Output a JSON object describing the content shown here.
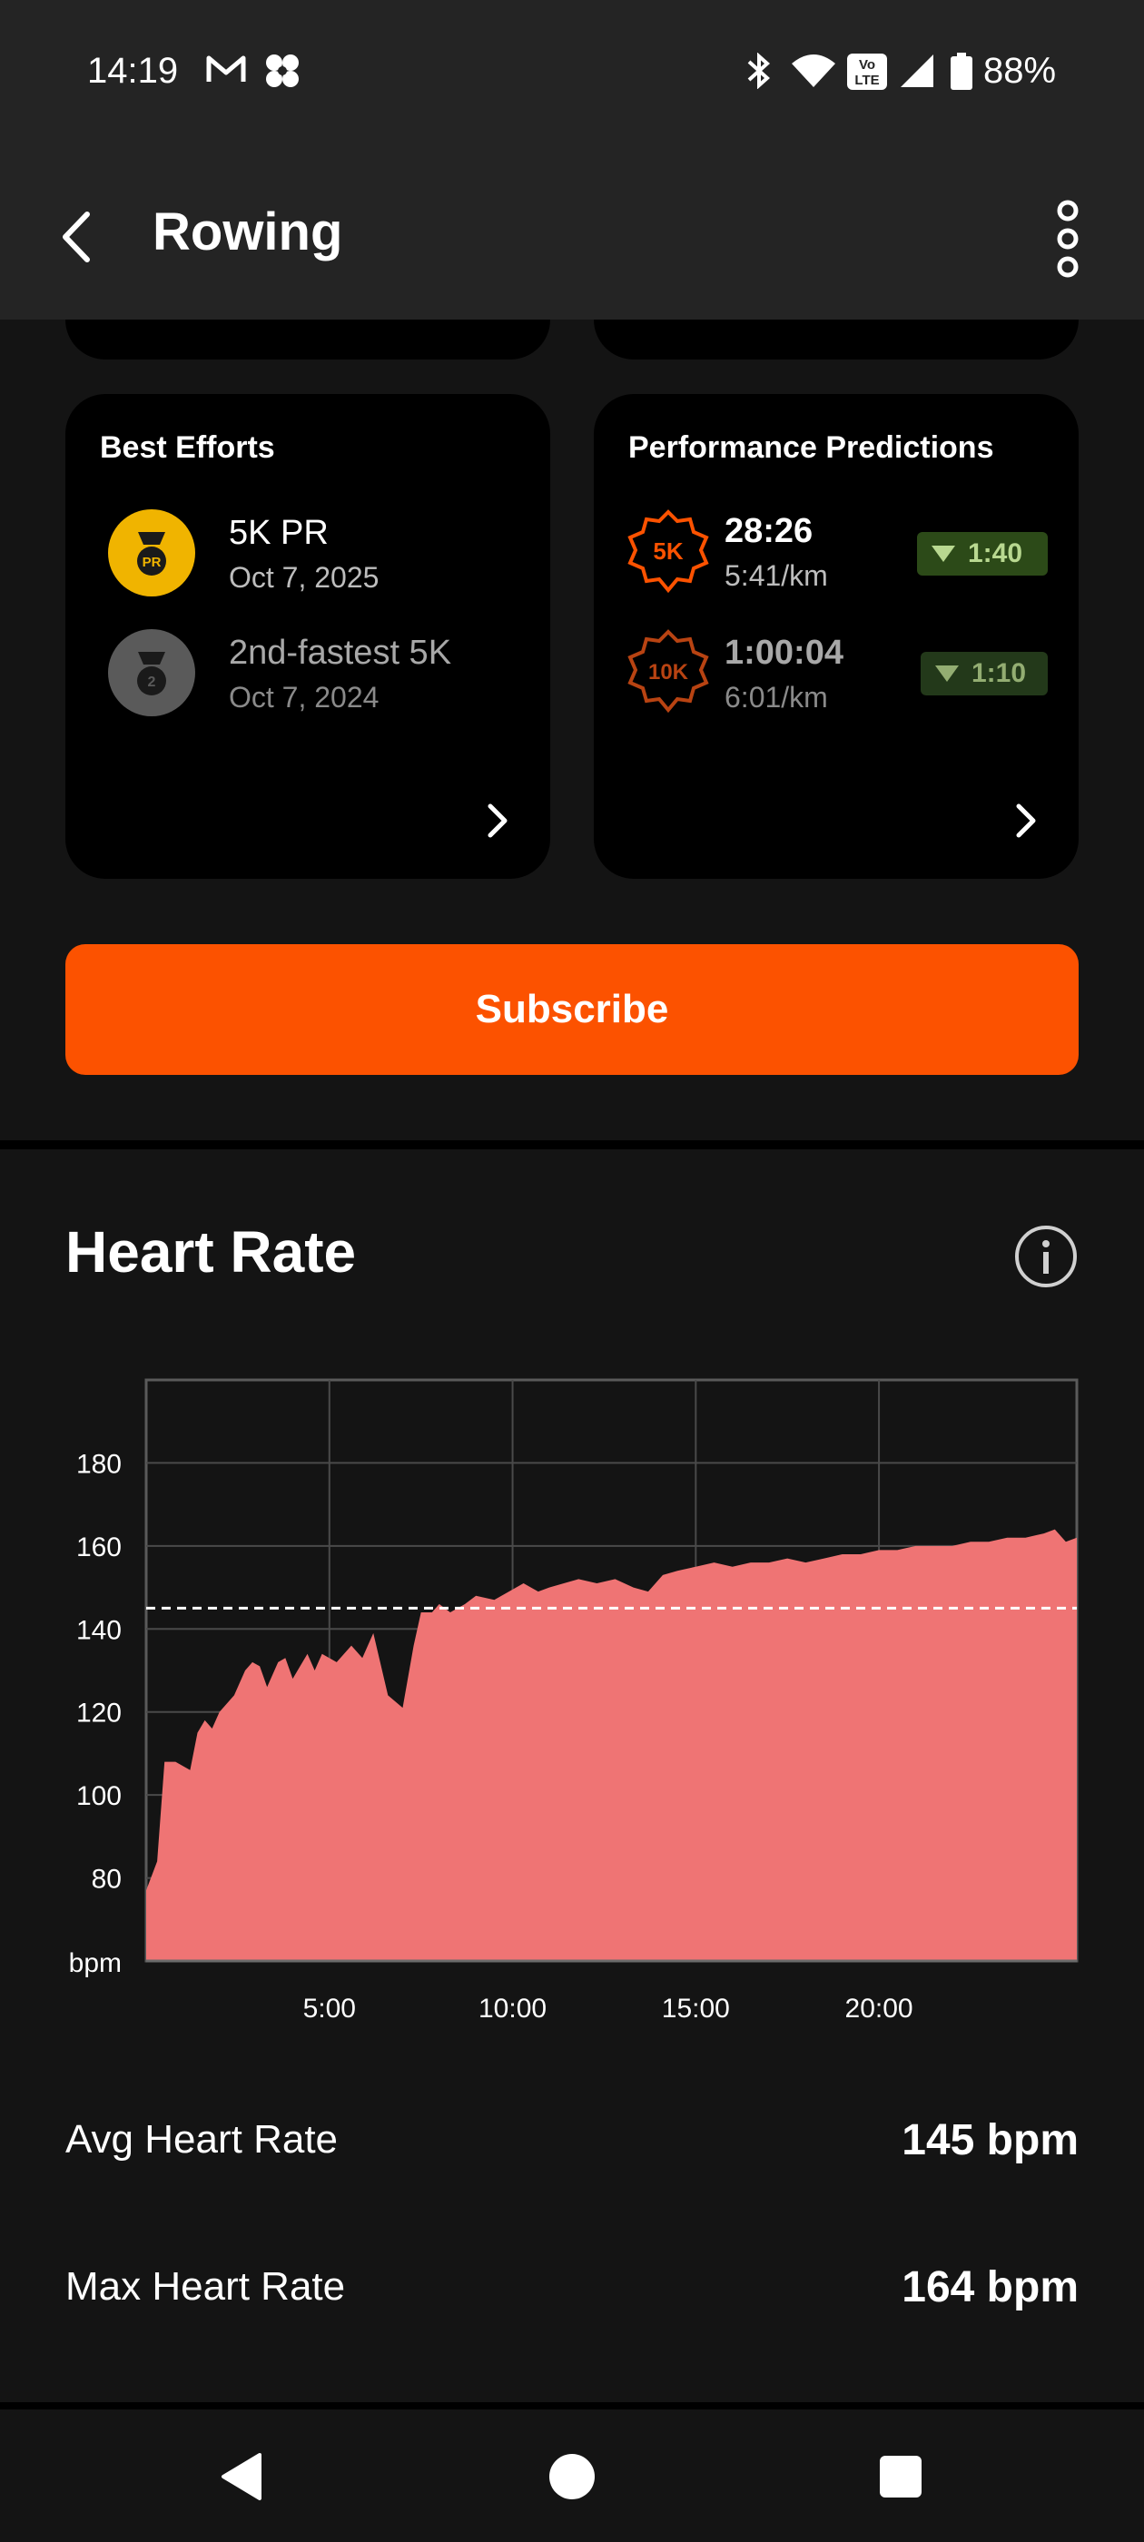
{
  "status_bar": {
    "time": "14:19",
    "battery": "88%",
    "icons": [
      "gmail-icon",
      "app-icon",
      "bluetooth-icon",
      "wifi-icon",
      "volte-icon",
      "signal-icon",
      "battery-icon"
    ]
  },
  "app_bar": {
    "title": "Rowing"
  },
  "best_efforts": {
    "title": "Best Efforts",
    "items": [
      {
        "name": "5K PR",
        "date": "Oct 7, 2025",
        "badge": "PR"
      },
      {
        "name": "2nd-fastest 5K",
        "date": "Oct 7, 2024",
        "badge": "2"
      }
    ]
  },
  "predictions": {
    "title": "Performance Predictions",
    "items": [
      {
        "distance": "5K",
        "time": "28:26",
        "pace": "5:41/km",
        "delta": "1:40"
      },
      {
        "distance": "10K",
        "time": "1:00:04",
        "pace": "6:01/km",
        "delta": "1:10"
      }
    ]
  },
  "subscribe_label": "Subscribe",
  "heart_rate": {
    "title": "Heart Rate",
    "avg_label": "Avg Heart Rate",
    "avg_value": "145 bpm",
    "max_label": "Max Heart Rate",
    "max_value": "164 bpm"
  },
  "colors": {
    "accent": "#fc5200",
    "area": "#ef7474",
    "card": "#000000",
    "background": "#141414"
  },
  "chart_data": {
    "type": "area",
    "xlabel": "",
    "ylabel": "bpm",
    "xlim": [
      0,
      25.4
    ],
    "ylim": [
      60,
      200
    ],
    "y_ticks": [
      80,
      100,
      120,
      140,
      160,
      180
    ],
    "x_ticks": [
      5,
      10,
      15,
      20
    ],
    "x_tick_labels": [
      "5:00",
      "10:00",
      "15:00",
      "20:00"
    ],
    "reference_line": 145,
    "grid": true,
    "series": [
      {
        "x": [
          0,
          0.3,
          0.5,
          0.8,
          1.2,
          1.4,
          1.6,
          1.8,
          2.0,
          2.4,
          2.7,
          2.9,
          3.1,
          3.3,
          3.6,
          3.8,
          4.0,
          4.2,
          4.4,
          4.6,
          4.8,
          5.2,
          5.6,
          5.9,
          6.2,
          6.6,
          7.0,
          7.3,
          7.5,
          7.8,
          8.0,
          8.3,
          8.7,
          9.0,
          9.5,
          9.9,
          10.3,
          10.7,
          11.0,
          11.4,
          11.8,
          12.3,
          12.8,
          13.3,
          13.7,
          14.1,
          14.5,
          15.0,
          15.5,
          16.0,
          16.5,
          17.0,
          17.5,
          18.0,
          18.5,
          19.0,
          19.5,
          20.0,
          20.5,
          21.0,
          21.5,
          22.0,
          22.5,
          23.0,
          23.5,
          24.0,
          24.5,
          24.8,
          25.1,
          25.4
        ],
        "y": [
          77,
          84,
          108,
          108,
          106,
          115,
          118,
          116,
          120,
          124,
          130,
          132,
          131,
          126,
          132,
          133,
          128,
          131,
          134,
          130,
          134,
          132,
          136,
          133,
          139,
          124,
          121,
          136,
          144,
          144,
          146,
          144,
          146,
          148,
          147,
          149,
          151,
          149,
          150,
          151,
          152,
          151,
          152,
          150,
          149,
          153,
          154,
          155,
          156,
          155,
          156,
          156,
          157,
          156,
          157,
          158,
          158,
          159,
          159,
          160,
          160,
          160,
          161,
          161,
          162,
          162,
          163,
          164,
          161,
          162
        ]
      }
    ]
  }
}
